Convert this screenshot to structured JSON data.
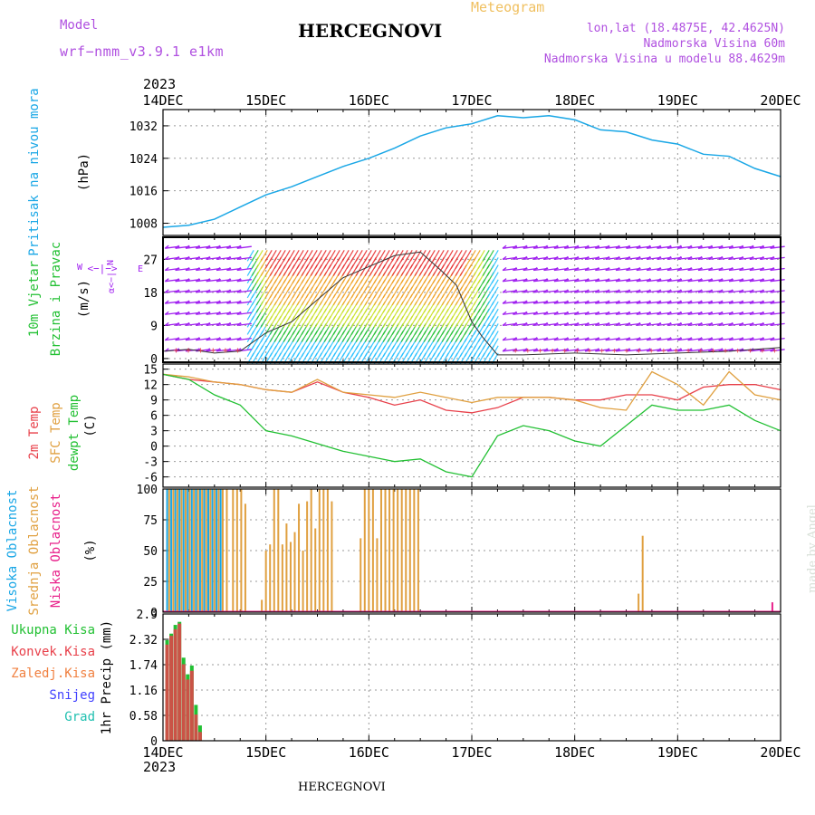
{
  "header": {
    "model_label": "Model",
    "model_name": "wrf−nmm_v3.9.1 e1km",
    "station": "HERCEGNOVI",
    "meteogram": "Meteogram",
    "lonlat": "lon,lat (18.4875E, 42.4625N)",
    "altitude": "Nadmorska Visina 60m",
    "model_altitude": "Nadmorska Visina u modelu 88.4629m",
    "year": "2023"
  },
  "footer": {
    "station": "HERCEGNOVI",
    "credit": "made by Angel",
    "year": "2023"
  },
  "colors": {
    "pressure": "#1aa7e6",
    "temp2m": "#e8404a",
    "sfc": "#e0a040",
    "dewpt": "#22c033",
    "wind_purple": "#a020f0",
    "wind_green": "#22c033",
    "wind_red": "#e8404a",
    "high_cloud": "#1aa7e6",
    "mid_cloud": "#e0a040",
    "low_cloud": "#e8208a",
    "total_precip": "#22c033",
    "conv_precip": "#e8404a",
    "snow": "#4040ff",
    "grad": "#20c0b0"
  },
  "chart_data": [
    {
      "type": "line",
      "panel": "pressure",
      "ylabel": [
        "Pritisak na nivou mora",
        "(hPa)"
      ],
      "x_ticks": [
        "14DEC",
        "15DEC",
        "16DEC",
        "17DEC",
        "18DEC",
        "19DEC",
        "20DEC"
      ],
      "yticks": [
        1008,
        1016,
        1024,
        1032
      ],
      "ylim": [
        1005,
        1036
      ],
      "grid": true,
      "x_days": [
        0,
        0.25,
        0.5,
        0.75,
        1.0,
        1.25,
        1.5,
        1.75,
        2.0,
        2.25,
        2.5,
        2.75,
        3.0,
        3.25,
        3.5,
        3.75,
        4.0,
        4.25,
        4.5,
        4.75,
        5.0,
        5.25,
        5.5,
        5.75,
        6.0
      ],
      "values": [
        1007,
        1007.5,
        1009,
        1012,
        1015,
        1017,
        1019.5,
        1022,
        1024,
        1026.5,
        1029.5,
        1031.5,
        1032.5,
        1034.5,
        1034,
        1034.5,
        1033.5,
        1031,
        1030.5,
        1028.5,
        1027.5,
        1025,
        1024.5,
        1021.5,
        1019.5
      ]
    },
    {
      "type": "line",
      "panel": "wind",
      "ylabel": [
        "10m Vjetar",
        "Brzina i Pravac",
        "(m/s)"
      ],
      "yticks": [
        0,
        9,
        18,
        27
      ],
      "ylim": [
        -1,
        33
      ],
      "grid": true,
      "series": [
        {
          "name": "wind speed",
          "x_days": [
            0,
            0.25,
            0.5,
            0.75,
            1.0,
            1.25,
            1.5,
            1.75,
            2.0,
            2.25,
            2.5,
            2.7,
            2.85,
            3.0,
            3.1,
            3.25,
            3.5,
            4.0,
            4.5,
            5.0,
            5.5,
            6.0
          ],
          "values": [
            2,
            2.5,
            1.5,
            2,
            7,
            10,
            16,
            22,
            25,
            28,
            29,
            24,
            20,
            10,
            6,
            1,
            1,
            1.5,
            1,
            1.5,
            2,
            3
          ]
        }
      ],
      "direction_panel": {
        "compass": [
          "N",
          "E",
          "W"
        ],
        "arrow_text": "<−|−>",
        "lower_text": "α<−|"
      }
    },
    {
      "type": "line",
      "panel": "temperature",
      "ylabel": [
        "2m Temp",
        "SFC Temp",
        "dewpt Temp",
        "(C)"
      ],
      "yticks": [
        -6,
        -3,
        0,
        3,
        6,
        9,
        12,
        15
      ],
      "ylim": [
        -8,
        16
      ],
      "grid": true,
      "x_days": [
        0,
        0.25,
        0.5,
        0.75,
        1.0,
        1.25,
        1.5,
        1.75,
        2.0,
        2.25,
        2.5,
        2.75,
        3.0,
        3.25,
        3.5,
        3.75,
        4.0,
        4.25,
        4.5,
        4.75,
        5.0,
        5.25,
        5.5,
        5.75,
        6.0
      ],
      "series": [
        {
          "name": "2m Temp",
          "values": [
            14,
            13,
            12.5,
            12,
            11,
            10.5,
            12.5,
            10.5,
            9.5,
            8,
            9,
            7,
            6.5,
            7.5,
            9.5,
            9.5,
            9,
            9,
            10,
            10,
            9,
            11.5,
            12,
            12,
            11
          ]
        },
        {
          "name": "SFC Temp",
          "values": [
            14,
            13.5,
            12.5,
            12,
            11,
            10.5,
            13,
            10.5,
            10,
            9.5,
            10.5,
            9.5,
            8.5,
            9.5,
            9.5,
            9.5,
            9,
            7.5,
            7,
            14.5,
            12,
            8,
            14.5,
            10,
            9
          ]
        },
        {
          "name": "dewpt Temp",
          "values": [
            14,
            13,
            10,
            8,
            3,
            2,
            0.5,
            -1,
            -2,
            -3,
            -2.5,
            -5,
            -6,
            2,
            4,
            3,
            1,
            0,
            4,
            8,
            7,
            7,
            8,
            5,
            3
          ]
        }
      ]
    },
    {
      "type": "bar",
      "panel": "clouds",
      "ylabel": [
        "Visoka Oblacnost",
        "Srednja Oblacnost",
        "Niska Oblacnost",
        "(%)"
      ],
      "yticks": [
        0,
        25,
        50,
        75,
        100
      ],
      "ylim": [
        0,
        100
      ],
      "grid": true,
      "series": [
        {
          "name": "Visoka Oblacnost",
          "x_days": [
            0.04,
            0.08,
            0.12,
            0.16,
            0.2,
            0.24,
            0.28,
            0.32,
            0.36,
            0.4,
            0.44,
            0.48,
            0.52,
            0.56
          ],
          "values": [
            100,
            100,
            100,
            100,
            100,
            100,
            100,
            100,
            100,
            100,
            100,
            100,
            100,
            100
          ]
        },
        {
          "name": "Srednja Oblacnost",
          "x_days": [
            0.06,
            0.1,
            0.14,
            0.18,
            0.22,
            0.26,
            0.3,
            0.34,
            0.38,
            0.42,
            0.46,
            0.5,
            0.54,
            0.58,
            0.62,
            0.68,
            0.72,
            0.76,
            0.8,
            0.96,
            1.0,
            1.04,
            1.08,
            1.12,
            1.16,
            1.2,
            1.24,
            1.28,
            1.32,
            1.36,
            1.4,
            1.44,
            1.48,
            1.52,
            1.56,
            1.6,
            1.64,
            1.92,
            1.96,
            2.0,
            2.04,
            2.08,
            2.12,
            2.16,
            2.2,
            2.24,
            2.28,
            2.32,
            2.36,
            2.4,
            2.44,
            2.48,
            4.62,
            4.66
          ],
          "values": [
            100,
            100,
            100,
            100,
            100,
            100,
            100,
            100,
            100,
            100,
            100,
            100,
            100,
            100,
            100,
            100,
            100,
            100,
            88,
            10,
            50,
            55,
            100,
            100,
            55,
            72,
            57,
            65,
            88,
            50,
            90,
            100,
            68,
            100,
            100,
            100,
            90,
            60,
            100,
            100,
            100,
            60,
            100,
            100,
            100,
            100,
            100,
            100,
            100,
            100,
            100,
            100,
            15,
            62
          ]
        },
        {
          "name": "Niska Oblacnost",
          "x_days": [
            5.92
          ],
          "values": [
            8
          ]
        }
      ]
    },
    {
      "type": "bar",
      "panel": "precip",
      "ylabel": [
        "1hr Precip (mm)"
      ],
      "legend": [
        "Ukupna Kisa",
        "Konvek.Kisa",
        "Zaledj.Kisa",
        "Snijeg",
        "Grad"
      ],
      "yticks": [
        0,
        0.58,
        1.16,
        1.74,
        2.32,
        2.9
      ],
      "ylim": [
        0,
        2.9
      ],
      "grid": true,
      "series": [
        {
          "name": "Ukupna Kisa",
          "x_days": [
            0.04,
            0.08,
            0.12,
            0.16,
            0.2,
            0.24,
            0.28,
            0.32,
            0.36
          ],
          "values": [
            2.3,
            2.45,
            2.65,
            2.72,
            1.9,
            1.52,
            1.72,
            0.82,
            0.35
          ]
        },
        {
          "name": "Konvek.Kisa",
          "x_days": [
            0.04,
            0.08,
            0.12,
            0.16,
            0.2,
            0.24,
            0.28,
            0.32,
            0.36
          ],
          "values": [
            2.2,
            2.4,
            2.55,
            2.68,
            1.75,
            1.4,
            1.6,
            0.6,
            0.2
          ]
        }
      ]
    }
  ]
}
